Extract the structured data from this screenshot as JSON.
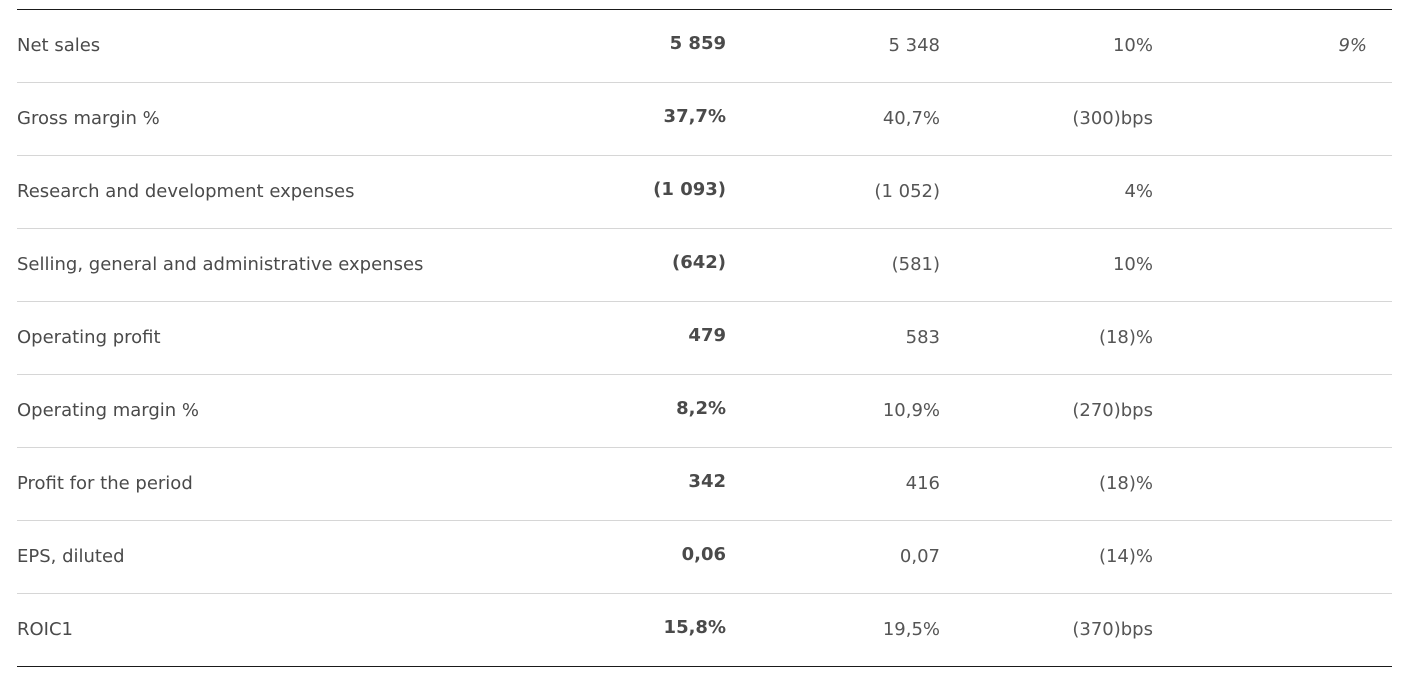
{
  "table": {
    "rows": [
      {
        "label": "Net sales",
        "current": "5 859",
        "prior": "5 348",
        "change": "10%",
        "extra": "9%"
      },
      {
        "label": "Gross margin %",
        "current": "37,7%",
        "prior": "40,7%",
        "change": "(300)bps",
        "extra": ""
      },
      {
        "label": "Research and development expenses",
        "current": "(1 093)",
        "prior": "(1 052)",
        "change": "4%",
        "extra": ""
      },
      {
        "label": "Selling, general and administrative expenses",
        "current": "(642)",
        "prior": "(581)",
        "change": "10%",
        "extra": ""
      },
      {
        "label": "Operating profit",
        "current": "479",
        "prior": "583",
        "change": "(18)%",
        "extra": ""
      },
      {
        "label": "Operating margin %",
        "current": "8,2%",
        "prior": "10,9%",
        "change": "(270)bps",
        "extra": ""
      },
      {
        "label": "Profit for the period",
        "current": "342",
        "prior": "416",
        "change": "(18)%",
        "extra": ""
      },
      {
        "label": "EPS, diluted",
        "current": "0,06",
        "prior": "0,07",
        "change": "(14)%",
        "extra": ""
      },
      {
        "label": "ROIC1",
        "current": "15,8%",
        "prior": "19,5%",
        "change": "(370)bps",
        "extra": ""
      }
    ]
  }
}
